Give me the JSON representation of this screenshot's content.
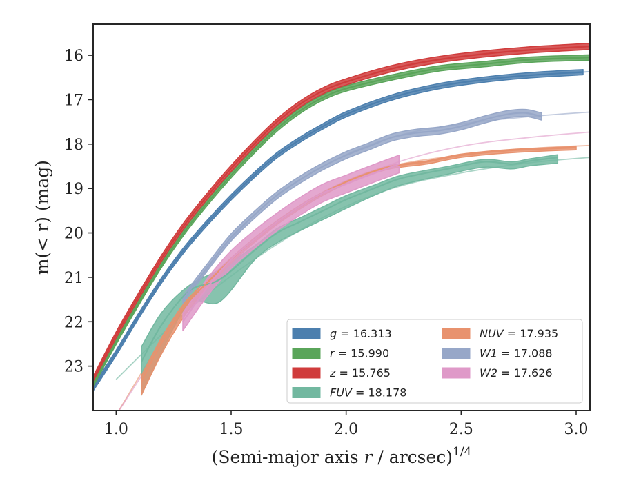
{
  "chart_data": {
    "type": "line",
    "xlabel": "(Semi-major axis r / arcsec)",
    "xlabel_power": "1/4",
    "ylabel": "m(< r) (mag)",
    "xlim": [
      0.9,
      3.06
    ],
    "ylim": [
      24.0,
      15.3
    ],
    "y_inverted": true,
    "xticks": [
      1.0,
      1.5,
      2.0,
      2.5,
      3.0
    ],
    "xtick_labels": [
      "1.0",
      "1.5",
      "2.0",
      "2.5",
      "3.0"
    ],
    "yticks": [
      16,
      17,
      18,
      19,
      20,
      21,
      22,
      23
    ],
    "ytick_labels": [
      "16",
      "17",
      "18",
      "19",
      "20",
      "21",
      "22",
      "23"
    ],
    "legend_position": "lower-right",
    "legend_columns": 2,
    "series": [
      {
        "name": "g = 16.313",
        "label_var": "g",
        "label_value": "16.313",
        "color": "#4c7fae",
        "x": [
          0.9,
          1.0,
          1.1,
          1.2,
          1.3,
          1.4,
          1.5,
          1.6,
          1.7,
          1.8,
          1.9,
          2.0,
          2.2,
          2.4,
          2.6,
          2.8,
          3.03
        ],
        "y": [
          23.5,
          22.7,
          21.85,
          21.05,
          20.35,
          19.75,
          19.2,
          18.7,
          18.25,
          17.9,
          17.6,
          17.33,
          16.95,
          16.7,
          16.55,
          16.45,
          16.38
        ],
        "band": 0.06,
        "model_x_end": 3.06,
        "model_y_end": 16.37
      },
      {
        "name": "r = 15.990",
        "label_var": "r",
        "label_value": "15.990",
        "color": "#5aa55a",
        "x": [
          0.9,
          1.0,
          1.1,
          1.2,
          1.3,
          1.4,
          1.5,
          1.6,
          1.7,
          1.8,
          1.9,
          2.0,
          2.2,
          2.4,
          2.6,
          2.8,
          3.06
        ],
        "y": [
          23.4,
          22.45,
          21.55,
          20.7,
          19.95,
          19.3,
          18.7,
          18.15,
          17.65,
          17.25,
          16.95,
          16.75,
          16.5,
          16.3,
          16.2,
          16.1,
          16.05
        ],
        "band": 0.06,
        "model_x_end": 3.06,
        "model_y_end": 16.04
      },
      {
        "name": "z = 15.765",
        "label_var": "z",
        "label_value": "15.765",
        "color": "#d03c3c",
        "x": [
          0.9,
          1.0,
          1.1,
          1.2,
          1.3,
          1.4,
          1.5,
          1.6,
          1.7,
          1.8,
          1.9,
          2.0,
          2.2,
          2.4,
          2.6,
          2.8,
          3.06
        ],
        "y": [
          23.3,
          22.3,
          21.4,
          20.55,
          19.8,
          19.15,
          18.55,
          18.0,
          17.5,
          17.1,
          16.8,
          16.6,
          16.3,
          16.1,
          15.97,
          15.88,
          15.8
        ],
        "band": 0.07,
        "model_x_end": 3.06,
        "model_y_end": 15.8
      },
      {
        "name": "FUV = 18.178",
        "label_var": "FUV",
        "label_value": "18.178",
        "color": "#72b8a0",
        "x": [
          1.11,
          1.2,
          1.32,
          1.45,
          1.6,
          1.7,
          1.8,
          1.9,
          2.0,
          2.12,
          2.22,
          2.3,
          2.45,
          2.6,
          2.72,
          2.8,
          2.92
        ],
        "y": [
          22.9,
          22.05,
          21.3,
          21.05,
          20.4,
          20.0,
          19.75,
          19.5,
          19.25,
          19.0,
          18.8,
          18.7,
          18.55,
          18.4,
          18.45,
          18.38,
          18.3
        ],
        "band_low": [
          0.75,
          0.6,
          0.28,
          0.5,
          0.22,
          0.22,
          0.2,
          0.2,
          0.2,
          0.16,
          0.15,
          0.14,
          0.12,
          0.12,
          0.11,
          0.11,
          0.13
        ],
        "model_x": [
          1.0,
          1.3,
          1.6,
          1.9,
          2.2,
          2.5,
          2.8,
          3.06
        ],
        "model_y": [
          23.3,
          21.8,
          20.6,
          19.65,
          19.0,
          18.65,
          18.42,
          18.3
        ]
      },
      {
        "name": "NUV = 17.935",
        "label_var": "NUV",
        "label_value": "17.935",
        "color": "#e8926e",
        "x": [
          1.11,
          1.2,
          1.3,
          1.4,
          1.5,
          1.6,
          1.7,
          1.8,
          1.9,
          2.0,
          2.1,
          2.2,
          2.35,
          2.5,
          2.7,
          2.9,
          3.0
        ],
        "y": [
          23.35,
          22.45,
          21.65,
          21.1,
          20.6,
          20.15,
          19.75,
          19.4,
          19.1,
          18.85,
          18.65,
          18.5,
          18.4,
          18.25,
          18.15,
          18.1,
          18.08
        ],
        "band_low": [
          0.3,
          0.25,
          0.2,
          0.12,
          0.08,
          0.07,
          0.06,
          0.06,
          0.05,
          0.05,
          0.05,
          0.05,
          0.05,
          0.05,
          0.05,
          0.05,
          0.05
        ],
        "model_x": [
          1.0,
          1.3,
          1.6,
          1.9,
          2.2,
          2.5,
          2.8,
          3.06
        ],
        "model_y": [
          24.1,
          21.65,
          20.15,
          19.1,
          18.5,
          18.25,
          18.1,
          18.03
        ]
      },
      {
        "name": "W1 = 17.088",
        "label_var": "W1",
        "label_value": "17.088",
        "color": "#97a7c8",
        "x": [
          1.29,
          1.4,
          1.5,
          1.6,
          1.7,
          1.8,
          1.9,
          2.0,
          2.1,
          2.2,
          2.3,
          2.4,
          2.5,
          2.6,
          2.7,
          2.78,
          2.85
        ],
        "y": [
          21.5,
          20.75,
          20.1,
          19.6,
          19.15,
          18.8,
          18.5,
          18.25,
          18.05,
          17.85,
          17.75,
          17.7,
          17.6,
          17.45,
          17.33,
          17.3,
          17.38
        ],
        "band": 0.08,
        "model_x": [
          1.3,
          1.6,
          1.9,
          2.2,
          2.5,
          2.8,
          3.06
        ],
        "model_y": [
          21.45,
          19.6,
          18.5,
          17.85,
          17.55,
          17.38,
          17.28
        ]
      },
      {
        "name": "W2 = 17.626",
        "label_var": "W2",
        "label_value": "17.626",
        "color": "#df99c8",
        "x": [
          1.29,
          1.4,
          1.5,
          1.6,
          1.7,
          1.8,
          1.9,
          2.0,
          2.1,
          2.23
        ],
        "y": [
          22.0,
          21.2,
          20.6,
          20.15,
          19.75,
          19.4,
          19.1,
          18.9,
          18.7,
          18.45
        ],
        "band": 0.2,
        "model_x": [
          1.0,
          1.3,
          1.6,
          1.9,
          2.2,
          2.5,
          2.8,
          3.06
        ],
        "model_y": [
          24.1,
          21.8,
          20.2,
          19.15,
          18.45,
          18.05,
          17.85,
          17.73
        ]
      }
    ]
  }
}
